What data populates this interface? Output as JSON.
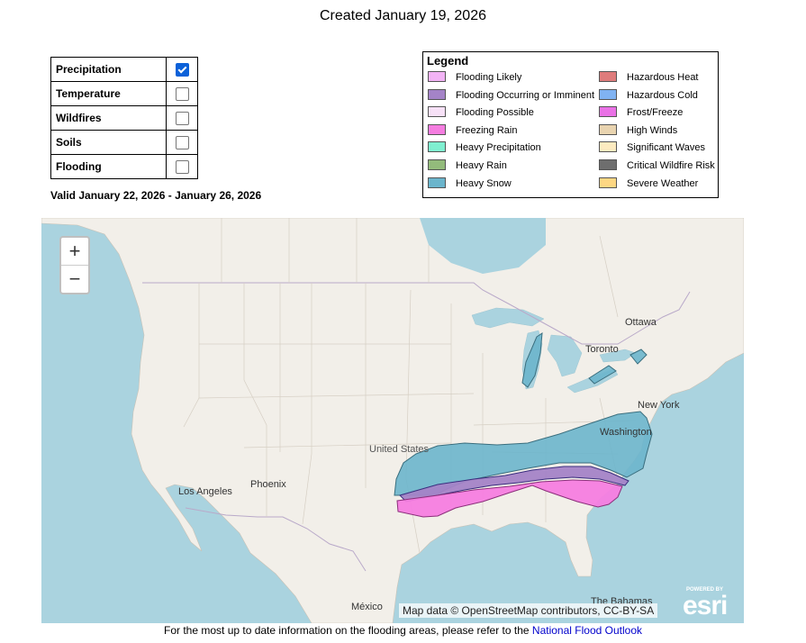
{
  "header": {
    "created": "Created January 19, 2026"
  },
  "layers": [
    {
      "label": "Precipitation",
      "checked": true
    },
    {
      "label": "Temperature",
      "checked": false
    },
    {
      "label": "Wildfires",
      "checked": false
    },
    {
      "label": "Soils",
      "checked": false
    },
    {
      "label": "Flooding",
      "checked": false
    }
  ],
  "valid": "Valid January 22, 2026 - January 26, 2026",
  "legend": {
    "title": "Legend",
    "items": [
      {
        "label": "Flooding Likely",
        "color": "#f2b3f5"
      },
      {
        "label": "Flooding Occurring or Imminent",
        "color": "#a483c7"
      },
      {
        "label": "Flooding Possible",
        "color": "#f7e1f7"
      },
      {
        "label": "Freezing Rain",
        "color": "#f57de0"
      },
      {
        "label": "Heavy Precipitation",
        "color": "#7fefd0"
      },
      {
        "label": "Heavy Rain",
        "color": "#93bb7b"
      },
      {
        "label": "Heavy Snow",
        "color": "#6bb5cc"
      },
      {
        "label": "Hazardous Heat",
        "color": "#df7c7c"
      },
      {
        "label": "Hazardous Cold",
        "color": "#80b3f2"
      },
      {
        "label": "Frost/Freeze",
        "color": "#ea72e6"
      },
      {
        "label": "High Winds",
        "color": "#e9d4b0"
      },
      {
        "label": "Significant Waves",
        "color": "#fdebc0"
      },
      {
        "label": "Critical Wildfire Risk",
        "color": "#6e6e6e"
      },
      {
        "label": "Severe Weather",
        "color": "#fdd783"
      }
    ]
  },
  "map": {
    "zoom_in": "+",
    "zoom_out": "−",
    "labels": {
      "ottawa": "Ottawa",
      "toronto": "Toronto",
      "new_york": "New York",
      "washington": "Washington",
      "united_states": "United States",
      "phoenix": "Phoenix",
      "los_angeles": "Los Angeles",
      "mexico": "México",
      "bahamas": "The Bahamas"
    },
    "attribution": "Map data © OpenStreetMap contributors, CC-BY-SA",
    "esri_powered": "POWERED BY",
    "esri_name": "esri",
    "colors": {
      "water": "#aad3df",
      "land": "#f2efe9",
      "border": "#b9a9c9"
    }
  },
  "footer": {
    "text": "For the most up to date information on the flooding areas, please refer to the ",
    "link": "National Flood Outlook"
  }
}
